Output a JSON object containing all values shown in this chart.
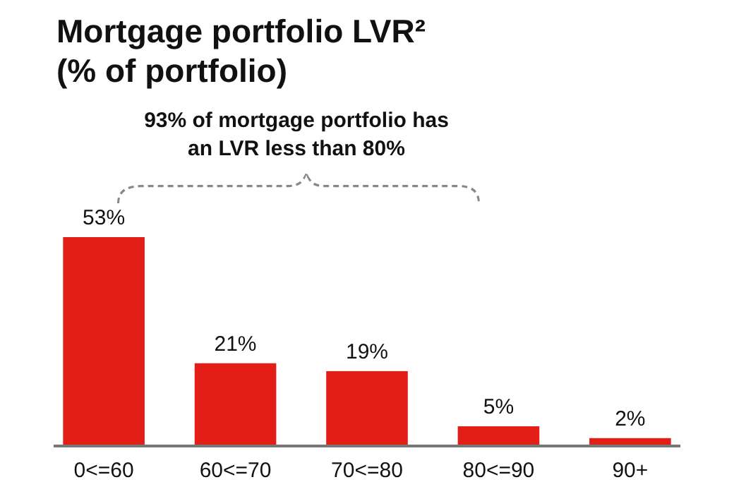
{
  "chart_data": {
    "type": "bar",
    "title": "Mortgage portfolio LVR²\n(% of portfolio)",
    "annotations": [
      "93% of mortgage portfolio has\nan LVR less than 80%"
    ],
    "categories": [
      "0<=60",
      "60<=70",
      "70<=80",
      "80<=90",
      "90+"
    ],
    "values": [
      53,
      21,
      19,
      5,
      2
    ],
    "value_labels": [
      "53%",
      "21%",
      "19%",
      "5%",
      "2%"
    ],
    "color": "#e31e17"
  }
}
